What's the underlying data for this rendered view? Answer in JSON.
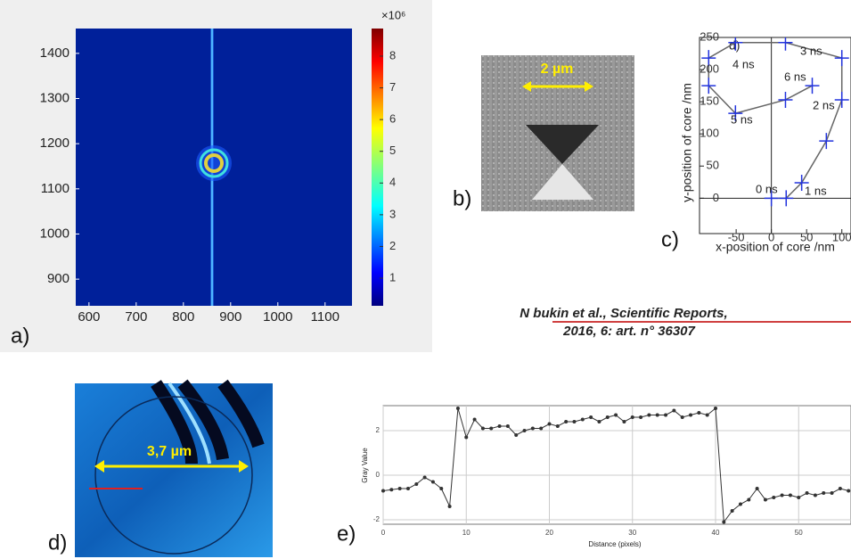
{
  "panel_a": {
    "label": "a)",
    "xlim": [
      572,
      1157
    ],
    "xticks": [
      600,
      700,
      800,
      900,
      1000,
      1100
    ],
    "ylim": [
      841,
      1455
    ],
    "yticks": [
      900,
      1000,
      1100,
      1200,
      1300,
      1400
    ],
    "colorbar": {
      "scale_label": "×10⁶",
      "lim": [
        0.13,
        8.87
      ],
      "ticks": [
        1,
        2,
        3,
        4,
        5,
        6,
        7,
        8
      ]
    }
  },
  "panel_b": {
    "label": "b)",
    "scale_bar": "2 µm"
  },
  "panel_c": {
    "label": "c)",
    "inner_label": "d)",
    "x_label": "x-position of core /nm",
    "y_label": "y-position of core /nm",
    "xlim": [
      -102,
      113
    ],
    "xticks": [
      -50,
      0,
      50,
      100
    ],
    "ylim": [
      -55,
      250
    ],
    "yticks": [
      0,
      50,
      100,
      150,
      200,
      250
    ],
    "x": [
      0,
      21,
      43,
      78,
      100,
      100,
      20,
      -51,
      -89,
      -89,
      -51,
      20,
      58
    ],
    "y": [
      0,
      0,
      24,
      89,
      153,
      218,
      242,
      242,
      218,
      175,
      132,
      153,
      175
    ],
    "time_labels": [
      "0 ns",
      "1 ns",
      "2 ns",
      "3 ns",
      "4 ns",
      "5 ns",
      "6 ns"
    ]
  },
  "citation": {
    "line1": "N bukin et al., Scientific Reports,",
    "line2": "2016, 6: art. n° 36307"
  },
  "panel_d": {
    "label": "d)",
    "scale_bar": "3,7 µm"
  },
  "panel_e": {
    "label": "e)",
    "x_label": "Distance (pixels)",
    "y_label": "Gray Value",
    "xlim": [
      0,
      56.3
    ],
    "xticks": [
      0,
      10,
      20,
      30,
      40,
      50
    ],
    "ylim": [
      -2.2,
      3.12
    ],
    "yticks": [
      -2,
      0,
      2
    ],
    "x": [
      0,
      1,
      2,
      3,
      4,
      5,
      6,
      7,
      8,
      9,
      10,
      11,
      12,
      13,
      14,
      15,
      16,
      17,
      18,
      19,
      20,
      21,
      22,
      23,
      24,
      25,
      26,
      27,
      28,
      29,
      30,
      31,
      32,
      33,
      34,
      35,
      36,
      37,
      38,
      39,
      40,
      41,
      42,
      43,
      44,
      45,
      46,
      47,
      48,
      49,
      50,
      51,
      52,
      53,
      54,
      55,
      56
    ],
    "y": [
      -0.7,
      -0.65,
      -0.6,
      -0.6,
      -0.4,
      -0.1,
      -0.3,
      -0.6,
      -1.4,
      3.0,
      1.7,
      2.5,
      2.1,
      2.1,
      2.2,
      2.2,
      1.8,
      2.0,
      2.1,
      2.1,
      2.3,
      2.2,
      2.4,
      2.4,
      2.5,
      2.6,
      2.4,
      2.6,
      2.7,
      2.4,
      2.6,
      2.6,
      2.7,
      2.7,
      2.7,
      2.9,
      2.6,
      2.7,
      2.8,
      2.7,
      3.0,
      -2.1,
      -1.6,
      -1.3,
      -1.1,
      -0.6,
      -1.1,
      -1.0,
      -0.9,
      -0.9,
      -1.0,
      -0.8,
      -0.9,
      -0.8,
      -0.8,
      -0.6,
      -0.7
    ]
  }
}
